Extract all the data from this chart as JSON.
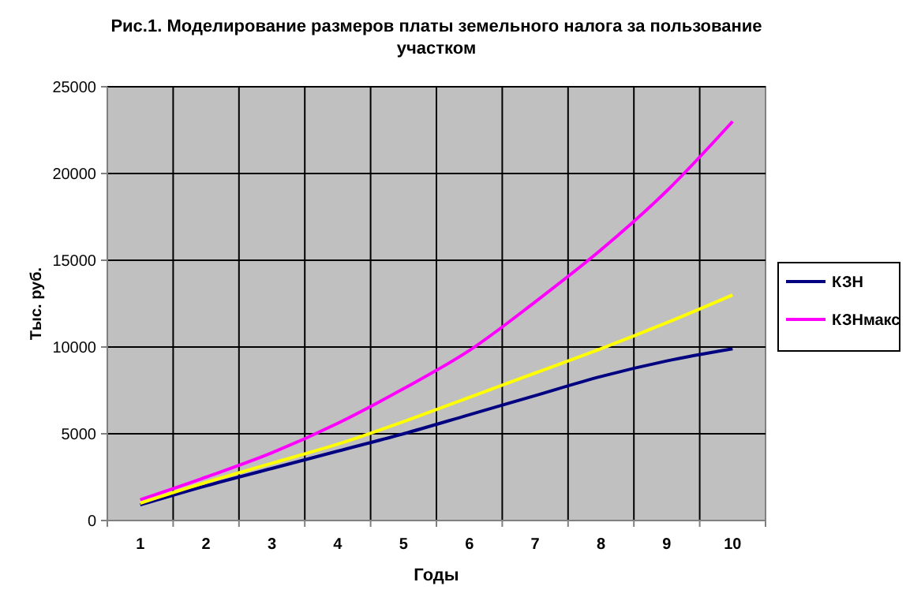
{
  "chart_data": {
    "type": "line",
    "title": "Рис.1. Моделирование размеров платы земельного налога за пользование участком",
    "xlabel": "Годы",
    "ylabel": "Тыс. руб.",
    "categories": [
      "1",
      "2",
      "3",
      "4",
      "5",
      "6",
      "7",
      "8",
      "9",
      "10"
    ],
    "series": [
      {
        "name": "КЗН",
        "color": "#000080",
        "values": [
          900,
          2000,
          3000,
          4000,
          5000,
          6100,
          7200,
          8300,
          9200,
          9900
        ]
      },
      {
        "name": "КЗНмакс",
        "color": "#ff00ff",
        "values": [
          1200,
          2500,
          3900,
          5600,
          7600,
          9800,
          12600,
          15600,
          19000,
          23000
        ]
      },
      {
        "color": "#ffff00",
        "values": [
          1000,
          2200,
          3300,
          4400,
          5700,
          7100,
          8500,
          9900,
          11400,
          13000
        ]
      }
    ],
    "ylim": [
      0,
      25000
    ],
    "yticks": [
      0,
      5000,
      10000,
      15000,
      20000,
      25000
    ],
    "grid": true,
    "legend": "right",
    "marker": "none",
    "line_style": "solid"
  }
}
